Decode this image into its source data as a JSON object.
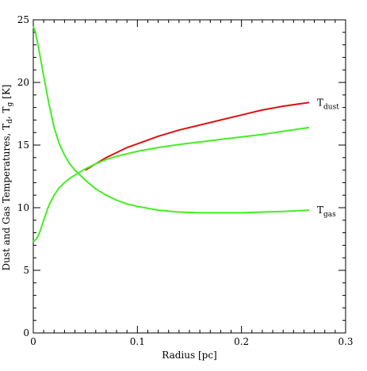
{
  "chart_data": {
    "type": "line",
    "xlabel": "Radius [pc]",
    "ylabel": "Dust and Gas Temperatures, T",
    "ylabel_sub_d": "d",
    "ylabel_sep": ", T",
    "ylabel_sub_g": "g",
    "ylabel_unit": " [K]",
    "xlim": [
      0,
      0.3
    ],
    "ylim": [
      0,
      25
    ],
    "x_ticks": [
      0,
      0.1,
      0.2,
      0.3
    ],
    "x_tick_labels": [
      "0",
      "0.1",
      "0.2",
      "0.3"
    ],
    "y_ticks": [
      0,
      5,
      10,
      15,
      20,
      25
    ],
    "y_tick_labels": [
      "0",
      "5",
      "10",
      "15",
      "20",
      "25"
    ],
    "grid": false,
    "series": [
      {
        "label_main": "T",
        "label_sub": "dust",
        "color": "#dd1111",
        "x": [
          0.05,
          0.06,
          0.07,
          0.08,
          0.09,
          0.1,
          0.12,
          0.14,
          0.16,
          0.18,
          0.2,
          0.22,
          0.24,
          0.265
        ],
        "y": [
          13.0,
          13.5,
          14.0,
          14.4,
          14.8,
          15.1,
          15.7,
          16.2,
          16.6,
          17.0,
          17.4,
          17.8,
          18.1,
          18.4
        ]
      },
      {
        "label_main": "T",
        "label_sub": "gas",
        "color": "#44ee22",
        "x": [
          0.0,
          0.002,
          0.005,
          0.01,
          0.015,
          0.02,
          0.025,
          0.03,
          0.035,
          0.04,
          0.05,
          0.06,
          0.07,
          0.08,
          0.09,
          0.1,
          0.12,
          0.14,
          0.16,
          0.18,
          0.2,
          0.22,
          0.24,
          0.265
        ],
        "y": [
          24.5,
          24.0,
          22.8,
          20.5,
          18.3,
          16.4,
          15.1,
          14.2,
          13.5,
          13.0,
          12.2,
          11.5,
          11.0,
          10.6,
          10.3,
          10.1,
          9.8,
          9.65,
          9.6,
          9.6,
          9.6,
          9.65,
          9.7,
          9.8
        ]
      },
      {
        "label_main": "",
        "label_sub": "",
        "color": "#44ee22",
        "x": [
          0.0,
          0.003,
          0.006,
          0.01,
          0.015,
          0.02,
          0.025,
          0.03,
          0.035,
          0.04,
          0.05,
          0.06,
          0.07,
          0.08,
          0.1,
          0.12,
          0.14,
          0.16,
          0.18,
          0.2,
          0.22,
          0.24,
          0.265
        ],
        "y": [
          7.3,
          7.5,
          8.0,
          9.0,
          10.2,
          11.0,
          11.6,
          12.0,
          12.35,
          12.6,
          13.1,
          13.5,
          13.85,
          14.1,
          14.5,
          14.8,
          15.05,
          15.25,
          15.45,
          15.65,
          15.85,
          16.1,
          16.4
        ]
      }
    ]
  }
}
